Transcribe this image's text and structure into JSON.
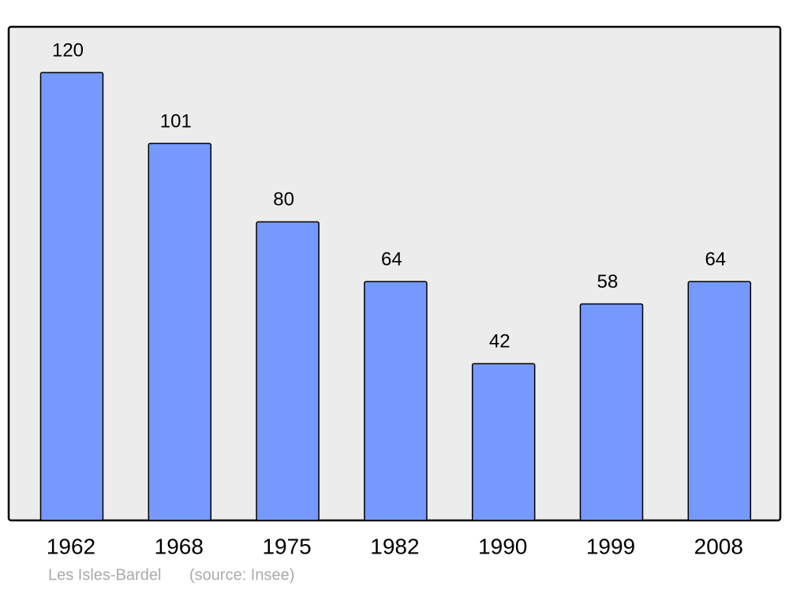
{
  "chart_data": {
    "type": "bar",
    "categories": [
      "1962",
      "1968",
      "1975",
      "1982",
      "1990",
      "1999",
      "2008"
    ],
    "values": [
      120,
      101,
      80,
      64,
      42,
      58,
      64
    ],
    "color": "#7599ff",
    "place": "Les Isles-Bardel",
    "source": "(source: Insee)"
  }
}
